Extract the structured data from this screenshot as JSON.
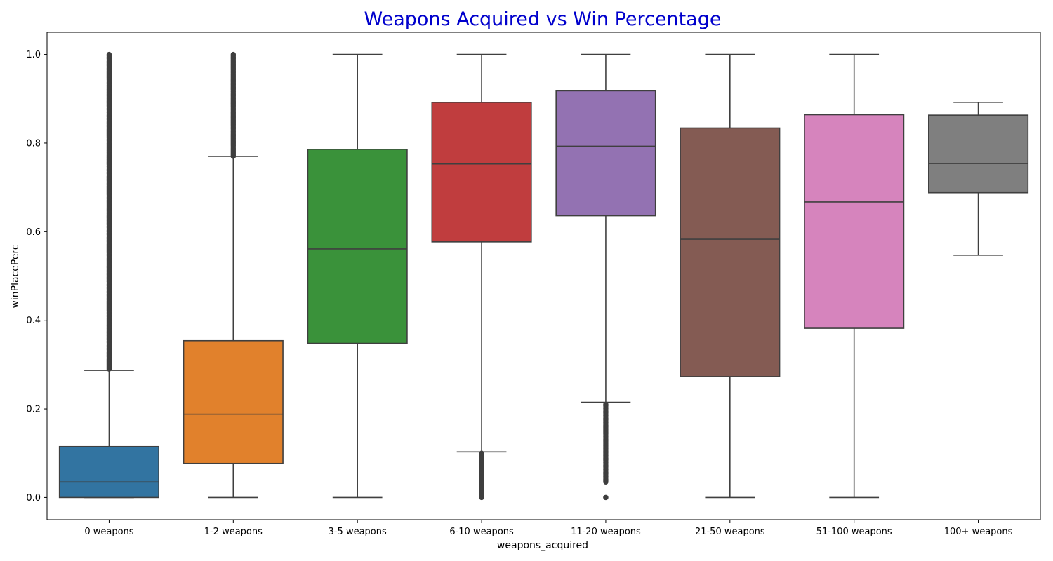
{
  "chart_data": {
    "type": "box",
    "title": "Weapons Acquired vs Win Percentage",
    "xlabel": "weapons_acquired",
    "ylabel": "winPlacePerc",
    "ylim": [
      -0.05,
      1.05
    ],
    "yticks": [
      0.0,
      0.2,
      0.4,
      0.6,
      0.8,
      1.0
    ],
    "grid": false,
    "categories": [
      "0 weapons",
      "1-2 weapons",
      "3-5 weapons",
      "6-10 weapons",
      "11-20 weapons",
      "21-50 weapons",
      "51-100 weapons",
      "100+ weapons"
    ],
    "boxes": [
      {
        "category": "0 weapons",
        "color": "#3274a1",
        "whisker_low": 0.0,
        "q1": 0.0,
        "median": 0.035,
        "q3": 0.115,
        "whisker_high": 0.287,
        "outlier_ranges": [
          [
            0.29,
            1.0
          ]
        ]
      },
      {
        "category": "1-2 weapons",
        "color": "#e1812c",
        "whisker_low": 0.0,
        "q1": 0.077,
        "median": 0.188,
        "q3": 0.354,
        "whisker_high": 0.77,
        "outlier_ranges": [
          [
            0.77,
            1.0
          ]
        ]
      },
      {
        "category": "3-5 weapons",
        "color": "#3a923a",
        "whisker_low": 0.0,
        "q1": 0.348,
        "median": 0.561,
        "q3": 0.786,
        "whisker_high": 1.0,
        "outlier_ranges": []
      },
      {
        "category": "6-10 weapons",
        "color": "#c03d3e",
        "whisker_low": 0.103,
        "q1": 0.577,
        "median": 0.753,
        "q3": 0.892,
        "whisker_high": 1.0,
        "outlier_ranges": [
          [
            0.0,
            0.1
          ]
        ]
      },
      {
        "category": "11-20 weapons",
        "color": "#9372b2",
        "whisker_low": 0.215,
        "q1": 0.636,
        "median": 0.793,
        "q3": 0.918,
        "whisker_high": 1.0,
        "outlier_ranges": [
          [
            0.035,
            0.21
          ],
          [
            0.0,
            0.0
          ]
        ]
      },
      {
        "category": "21-50 weapons",
        "color": "#845b53",
        "whisker_low": 0.0,
        "q1": 0.273,
        "median": 0.583,
        "q3": 0.834,
        "whisker_high": 1.0,
        "outlier_ranges": []
      },
      {
        "category": "51-100 weapons",
        "color": "#d684bd",
        "whisker_low": 0.0,
        "q1": 0.382,
        "median": 0.667,
        "q3": 0.864,
        "whisker_high": 1.0,
        "outlier_ranges": []
      },
      {
        "category": "100+ weapons",
        "color": "#7f7f7f",
        "whisker_low": 0.547,
        "q1": 0.688,
        "median": 0.754,
        "q3": 0.863,
        "whisker_high": 0.892,
        "outlier_ranges": []
      }
    ]
  }
}
